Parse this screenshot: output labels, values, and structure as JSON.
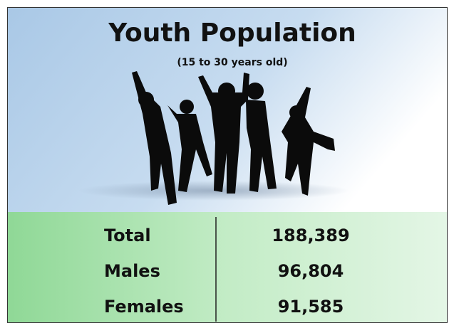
{
  "header": {
    "title": "Youth Population",
    "subtitle": "(15 to 30 years old)"
  },
  "table": {
    "rows": [
      [
        "Total",
        "188,389"
      ],
      [
        "Males",
        "96,804"
      ],
      [
        "Females",
        "91,585"
      ]
    ]
  }
}
